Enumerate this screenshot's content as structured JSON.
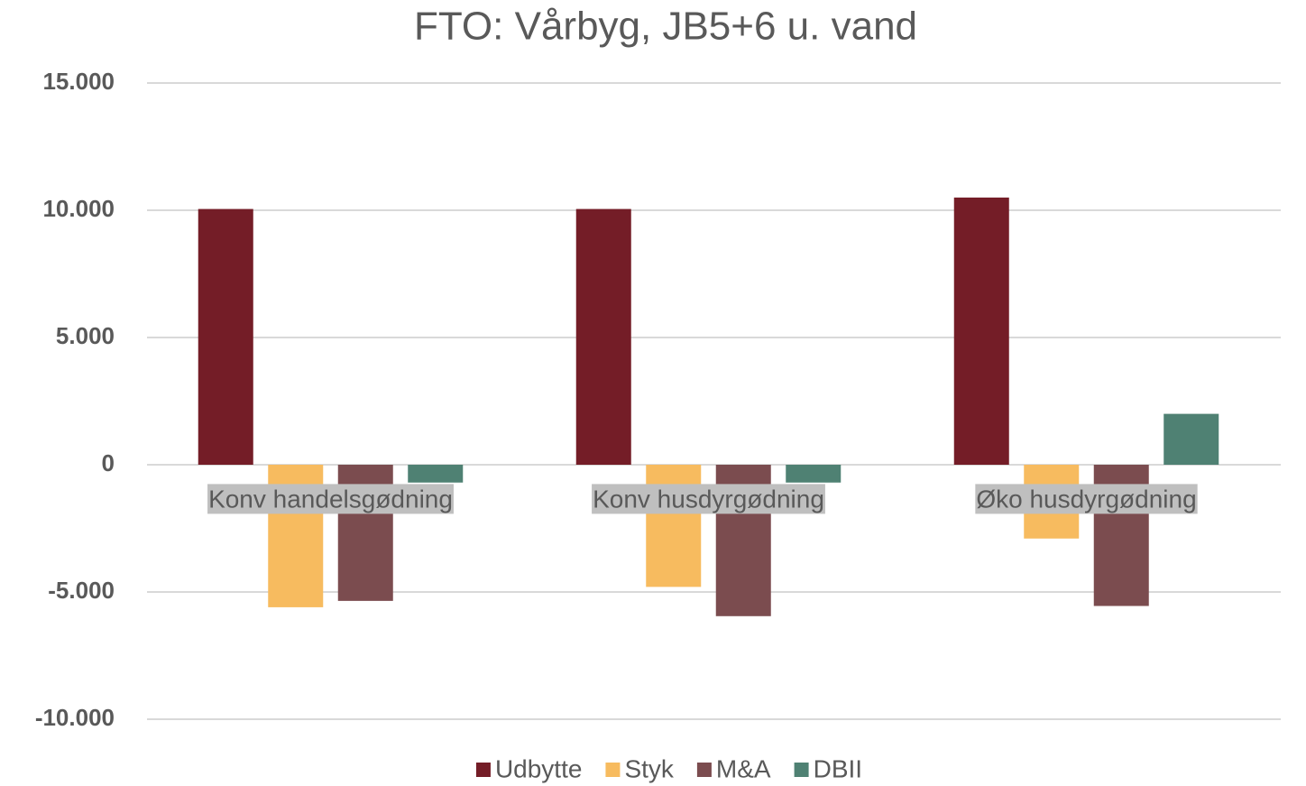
{
  "chart_data": {
    "type": "bar",
    "title": "FTO: Vårbyg, JB5+6 u. vand",
    "categories": [
      "Konv handelsgødning",
      "Konv husdyrgødning",
      "Øko husdyrgødning"
    ],
    "series": [
      {
        "name": "Udbytte",
        "color": "#741d27",
        "values": [
          10050,
          10050,
          10500
        ]
      },
      {
        "name": "Styk",
        "color": "#f7bb5f",
        "values": [
          -5600,
          -4800,
          -2900
        ]
      },
      {
        "name": "M&A",
        "color": "#7b4c4f",
        "values": [
          -5350,
          -5950,
          -5550
        ]
      },
      {
        "name": "DBII",
        "color": "#4f8173",
        "values": [
          -700,
          -700,
          2000
        ]
      }
    ],
    "ylim": [
      -10000,
      15000
    ],
    "yticks": [
      {
        "value": -10000,
        "label": "-10.000"
      },
      {
        "value": -5000,
        "label": "-5.000"
      },
      0,
      {
        "value": 5000,
        "label": "5.000"
      },
      {
        "value": 10000,
        "label": "10.000"
      },
      {
        "value": 15000,
        "label": "15.000"
      }
    ],
    "grid": true,
    "legend": "bottom"
  }
}
